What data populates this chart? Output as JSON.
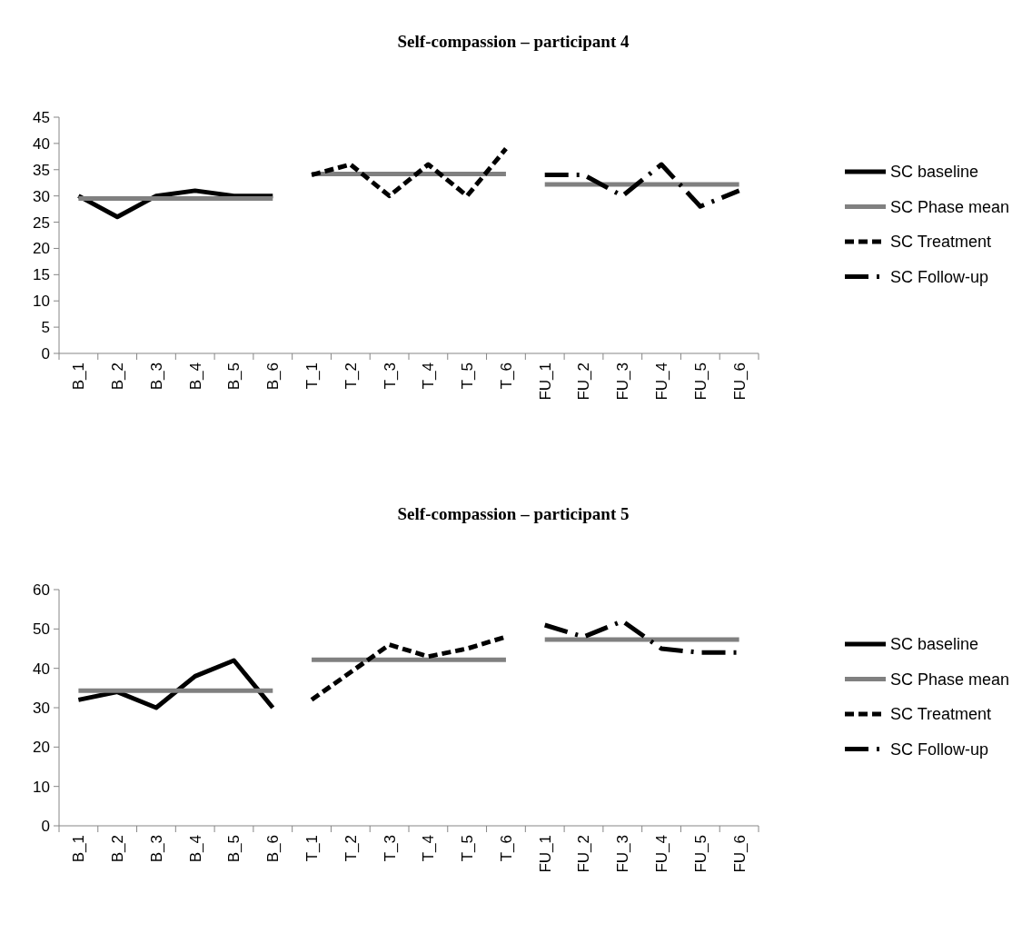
{
  "chart_data": [
    {
      "type": "line",
      "title": "Self-compassion – participant 4",
      "categories": [
        "B_1",
        "B_2",
        "B_3",
        "B_4",
        "B_5",
        "B_6",
        "T_1",
        "T_2",
        "T_3",
        "T_4",
        "T_5",
        "T_6",
        "FU_1",
        "FU_2",
        "FU_3",
        "FU_4",
        "FU_5",
        "FU_6"
      ],
      "series": [
        {
          "name": "SC baseline",
          "color": "#000000",
          "line_style": "solid",
          "values": [
            30,
            26,
            30,
            31,
            30,
            30,
            null,
            null,
            null,
            null,
            null,
            null,
            null,
            null,
            null,
            null,
            null,
            null
          ]
        },
        {
          "name": "SC Phase mean",
          "color": "#808080",
          "line_style": "solid",
          "values": [
            29.5,
            29.5,
            29.5,
            29.5,
            29.5,
            29.5,
            null,
            null,
            null,
            null,
            null,
            null,
            null,
            null,
            null,
            null,
            null,
            null
          ]
        },
        {
          "color": "#808080",
          "line_style": "solid",
          "values": [
            null,
            null,
            null,
            null,
            null,
            null,
            34.2,
            34.2,
            34.2,
            34.2,
            34.2,
            34.2,
            null,
            null,
            null,
            null,
            null,
            null
          ]
        },
        {
          "color": "#808080",
          "line_style": "solid",
          "values": [
            null,
            null,
            null,
            null,
            null,
            null,
            null,
            null,
            null,
            null,
            null,
            null,
            32.2,
            32.2,
            32.2,
            32.2,
            32.2,
            32.2
          ]
        },
        {
          "name": "SC Treatment",
          "color": "#000000",
          "line_style": "dashed",
          "values": [
            null,
            null,
            null,
            null,
            null,
            null,
            34,
            36,
            30,
            36,
            30,
            39,
            null,
            null,
            null,
            null,
            null,
            null
          ]
        },
        {
          "name": "SC Follow-up",
          "color": "#000000",
          "line_style": "dashdot",
          "values": [
            null,
            null,
            null,
            null,
            null,
            null,
            null,
            null,
            null,
            null,
            null,
            null,
            34,
            34,
            30,
            36,
            28,
            31
          ]
        }
      ],
      "ylim": [
        0,
        45
      ],
      "yticks": [
        0,
        5,
        10,
        15,
        20,
        25,
        30,
        35,
        40,
        45
      ],
      "grid": false,
      "legend": "right"
    },
    {
      "type": "line",
      "title": "Self-compassion – participant 5",
      "categories": [
        "B_1",
        "B_2",
        "B_3",
        "B_4",
        "B_5",
        "B_6",
        "T_1",
        "T_2",
        "T_3",
        "T_4",
        "T_5",
        "T_6",
        "FU_1",
        "FU_2",
        "FU_3",
        "FU_4",
        "FU_5",
        "FU_6"
      ],
      "series": [
        {
          "name": "SC baseline",
          "color": "#000000",
          "line_style": "solid",
          "values": [
            32,
            34,
            30,
            38,
            42,
            30,
            null,
            null,
            null,
            null,
            null,
            null,
            null,
            null,
            null,
            null,
            null,
            null
          ]
        },
        {
          "name": "SC Phase mean",
          "color": "#808080",
          "line_style": "solid",
          "values": [
            34.3,
            34.3,
            34.3,
            34.3,
            34.3,
            34.3,
            null,
            null,
            null,
            null,
            null,
            null,
            null,
            null,
            null,
            null,
            null,
            null
          ]
        },
        {
          "color": "#808080",
          "line_style": "solid",
          "values": [
            null,
            null,
            null,
            null,
            null,
            null,
            42.2,
            42.2,
            42.2,
            42.2,
            42.2,
            42.2,
            null,
            null,
            null,
            null,
            null,
            null
          ]
        },
        {
          "color": "#808080",
          "line_style": "solid",
          "values": [
            null,
            null,
            null,
            null,
            null,
            null,
            null,
            null,
            null,
            null,
            null,
            null,
            47.3,
            47.3,
            47.3,
            47.3,
            47.3,
            47.3
          ]
        },
        {
          "name": "SC Treatment",
          "color": "#000000",
          "line_style": "dashed",
          "values": [
            null,
            null,
            null,
            null,
            null,
            null,
            32,
            39,
            46,
            43,
            45,
            48,
            null,
            null,
            null,
            null,
            null,
            null
          ]
        },
        {
          "name": "SC Follow-up",
          "color": "#000000",
          "line_style": "dashdot",
          "values": [
            null,
            null,
            null,
            null,
            null,
            null,
            null,
            null,
            null,
            null,
            null,
            null,
            51,
            48,
            52,
            45,
            44,
            44
          ]
        }
      ],
      "ylim": [
        0,
        60
      ],
      "yticks": [
        0,
        10,
        20,
        30,
        40,
        50,
        60
      ],
      "grid": false,
      "legend": "right"
    }
  ]
}
